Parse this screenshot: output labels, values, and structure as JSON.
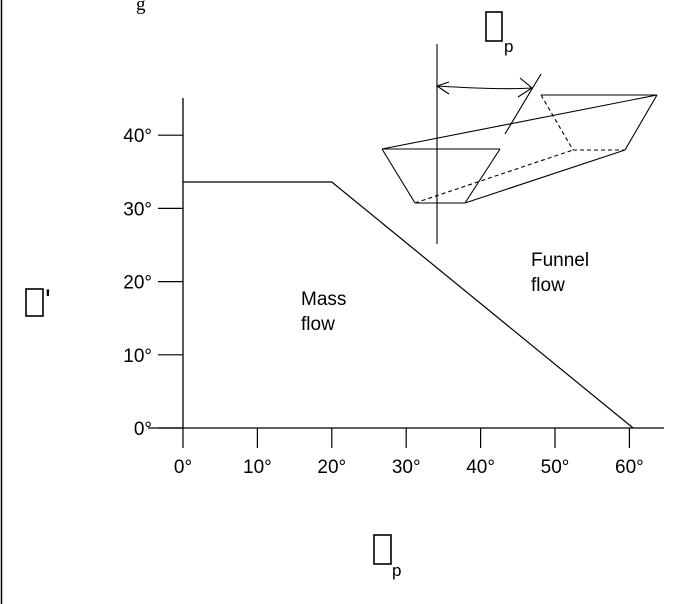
{
  "header_fragment": "g",
  "chart_data": {
    "type": "line",
    "xlabel": "p",
    "ylabel": "'",
    "xlim": [
      0,
      65
    ],
    "ylim": [
      0,
      46
    ],
    "x_ticks": [
      0,
      10,
      20,
      30,
      40,
      50,
      60
    ],
    "x_tick_labels": [
      "0°",
      "10°",
      "20°",
      "30°",
      "40°",
      "50°",
      "60°"
    ],
    "y_ticks": [
      0,
      10,
      20,
      30,
      40
    ],
    "y_tick_labels": [
      "0°",
      "10°",
      "20°",
      "30°",
      "40°"
    ],
    "series": [
      {
        "points": [
          [
            0,
            33.6
          ],
          [
            20,
            33.6
          ],
          [
            60.5,
            0
          ]
        ]
      }
    ],
    "regions": [
      {
        "lines": [
          "Mass",
          "flow"
        ]
      },
      {
        "lines": [
          "Funnel",
          "flow"
        ]
      }
    ],
    "inset_label": "p",
    "grid": false
  }
}
